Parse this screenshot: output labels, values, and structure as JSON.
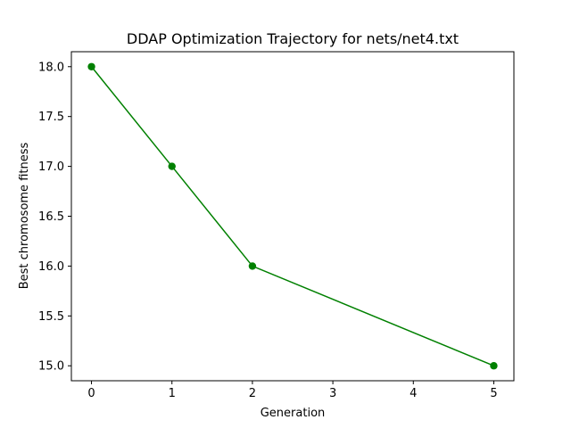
{
  "chart_data": {
    "type": "line",
    "title": "DDAP Optimization Trajectory for nets/net4.txt",
    "xlabel": "Generation",
    "ylabel": "Best chromosome fitness",
    "xlim": [
      -0.25,
      5.25
    ],
    "ylim": [
      14.85,
      18.15
    ],
    "x_ticks": [
      0,
      1,
      2,
      3,
      4,
      5
    ],
    "y_ticks": [
      15.0,
      15.5,
      16.0,
      16.5,
      17.0,
      17.5,
      18.0
    ],
    "x_tick_labels": [
      "0",
      "1",
      "2",
      "3",
      "4",
      "5"
    ],
    "y_tick_labels": [
      "15.0",
      "15.5",
      "16.0",
      "16.5",
      "17.0",
      "17.5",
      "18.0"
    ],
    "grid": false,
    "series": [
      {
        "color": "#008000",
        "marker": "circle",
        "x": [
          0,
          1,
          2,
          5
        ],
        "y": [
          18.0,
          17.0,
          16.0,
          15.0
        ]
      }
    ]
  }
}
